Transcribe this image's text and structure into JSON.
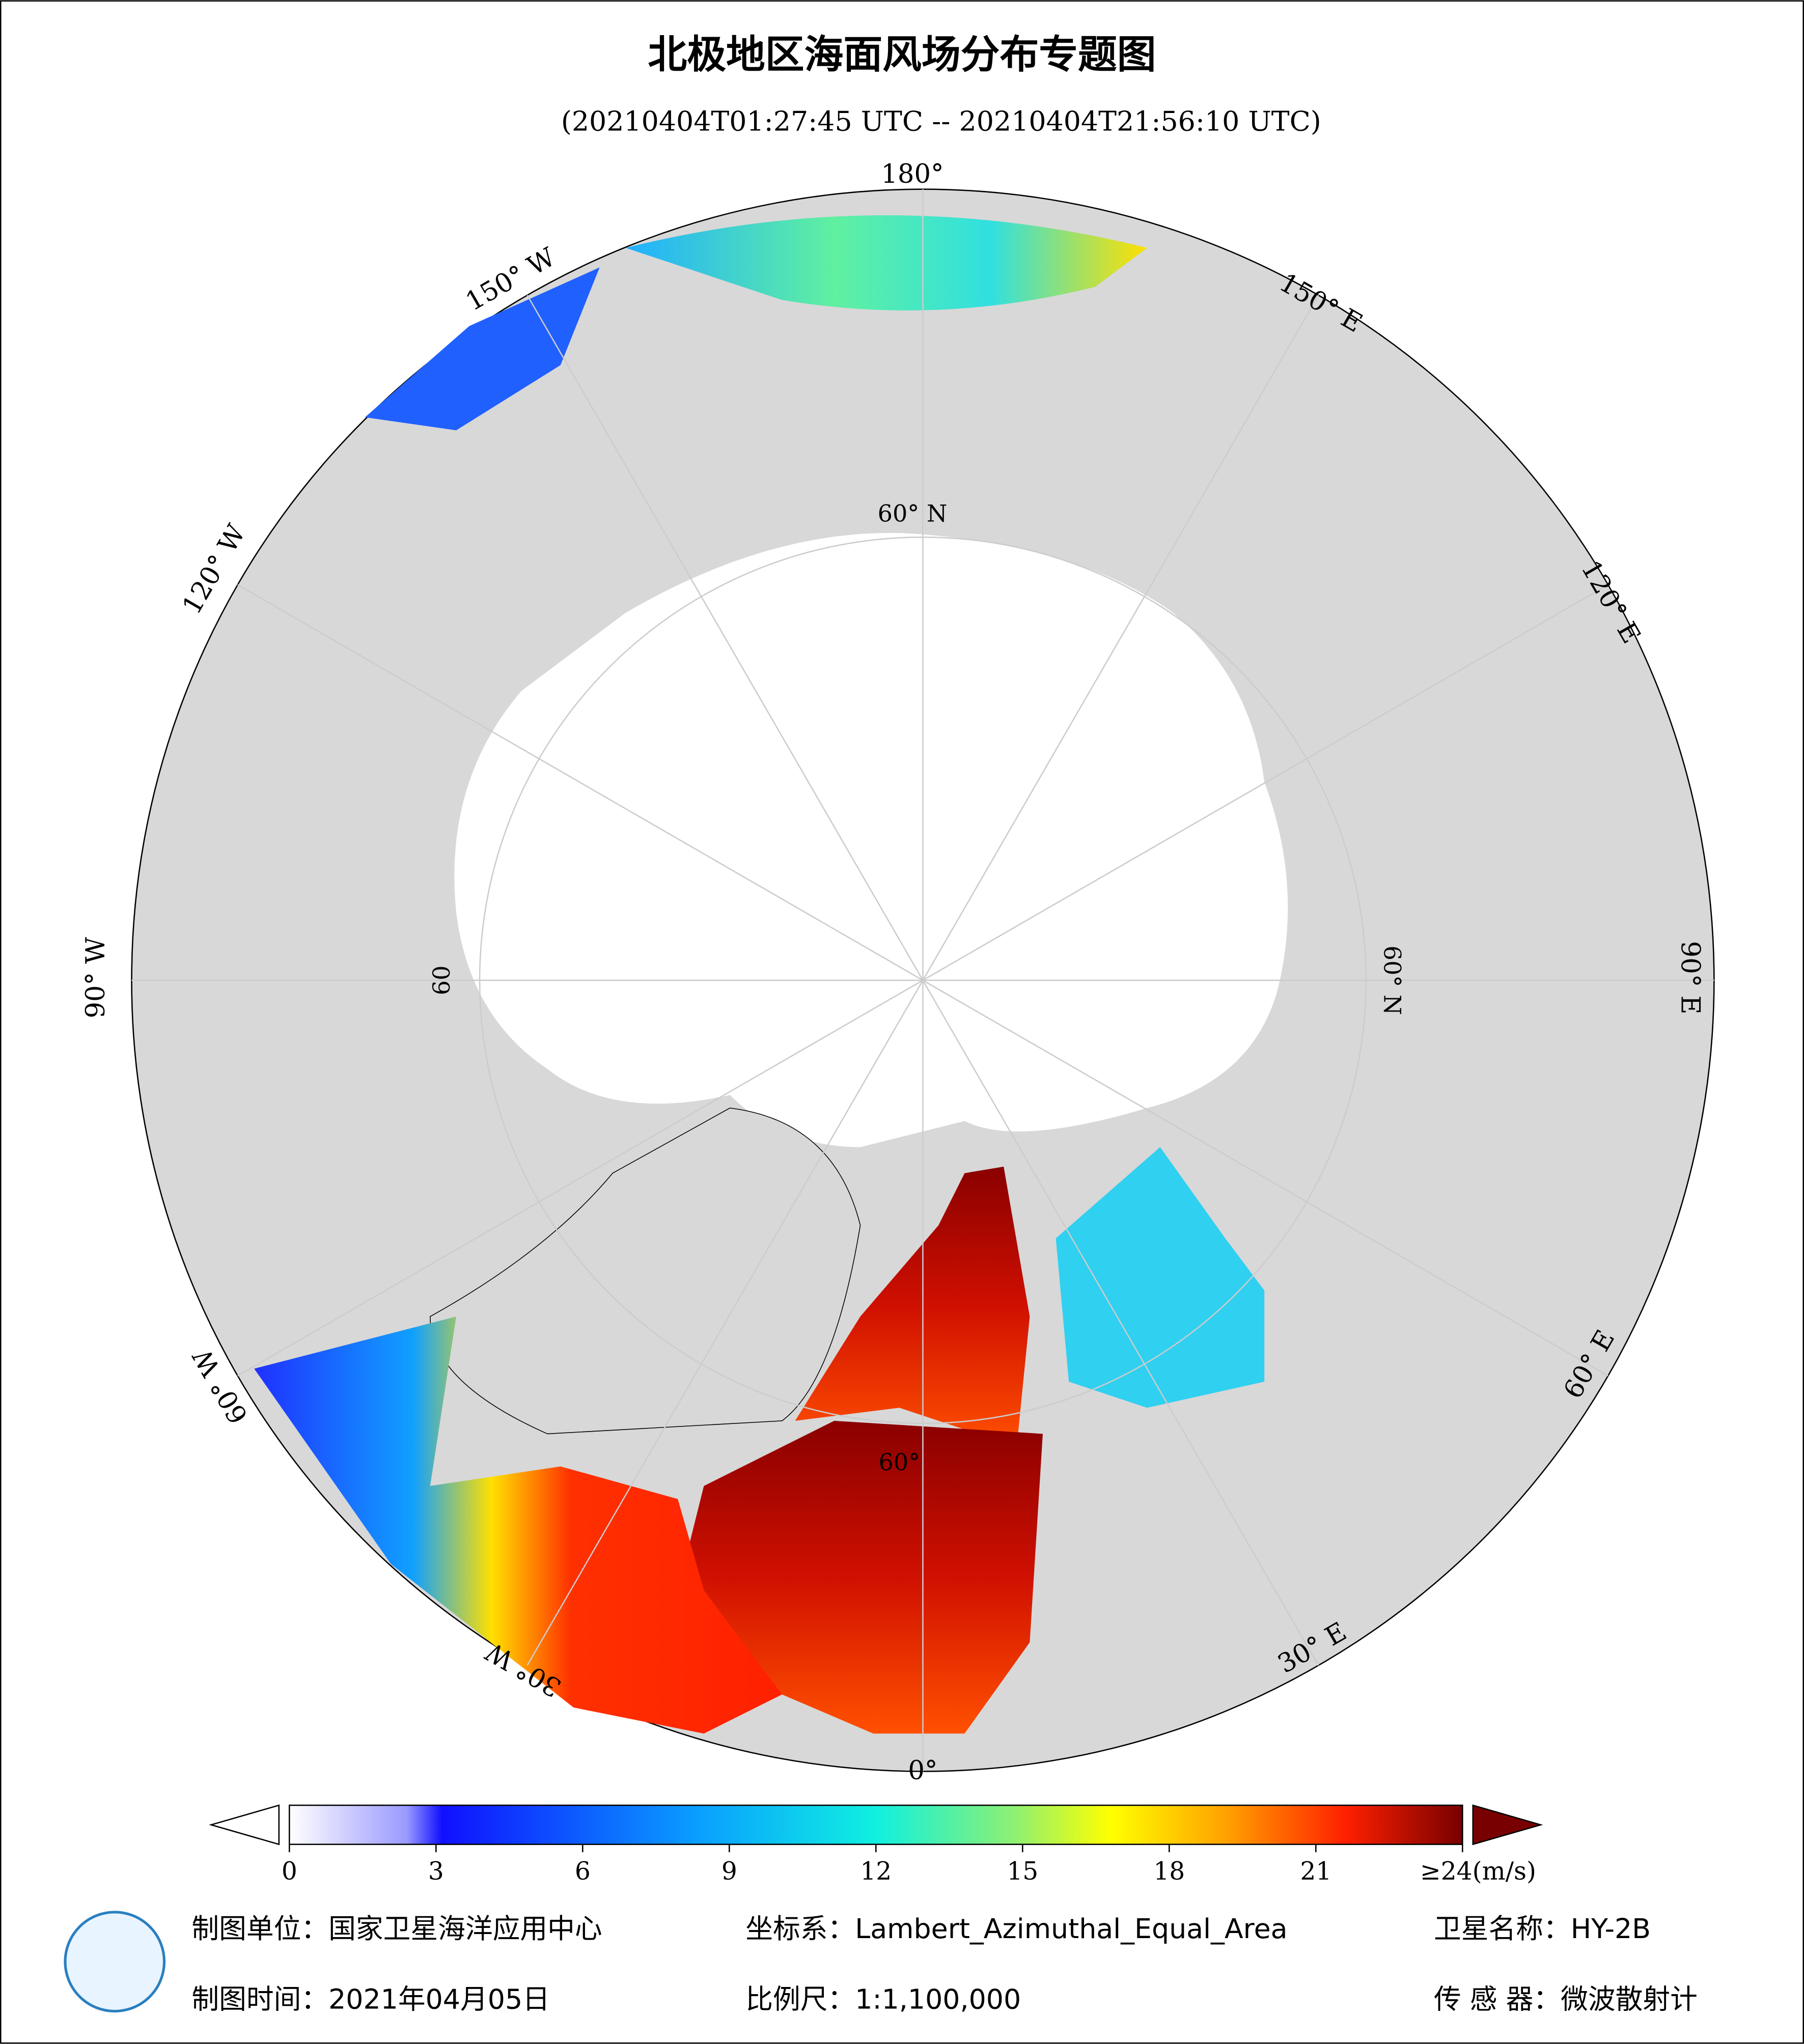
{
  "header": {
    "title": "北极地区海面风场分布专题图",
    "subtitle": "(20210404T01:27:45 UTC -- 20210404T21:56:10 UTC)"
  },
  "map": {
    "longitude_labels": [
      "180°",
      "150° E",
      "120° E",
      "90° E",
      "60° E",
      "30° E",
      "0°",
      "30° W",
      "60° W",
      "90° W",
      "120° W",
      "150° W"
    ],
    "latitude_labels": [
      "60° N",
      "60° N",
      "60",
      "60°"
    ]
  },
  "colorbar": {
    "lim": [
      0,
      24
    ],
    "ticks": [
      0,
      3,
      6,
      9,
      12,
      15,
      18,
      21,
      {
        "value": 24,
        "label": "≥24(m/s)"
      }
    ]
  },
  "footer": {
    "unit": "制图单位：国家卫星海洋应用中心",
    "crs": "坐标系：Lambert_Azimuthal_Equal_Area",
    "satellite": "卫星名称：HY-2B",
    "date": "制图时间：2021年04月05日",
    "scale": "比例尺：1:1,100,000",
    "sensor": "传 感 器：微波散射计"
  }
}
